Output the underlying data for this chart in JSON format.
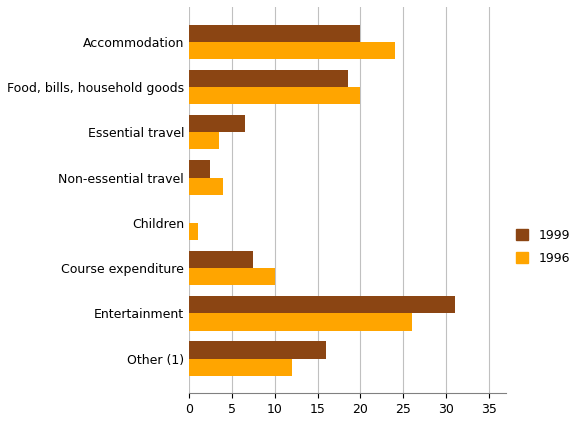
{
  "categories": [
    "Accommodation",
    "Food, bills, household goods",
    "Essential travel",
    "Non-essential travel",
    "Children",
    "Course expenditure",
    "Entertainment",
    "Other (1)"
  ],
  "values_1999": [
    20,
    18.5,
    6.5,
    2.5,
    0,
    7.5,
    31,
    16
  ],
  "values_1996": [
    24,
    20,
    3.5,
    4,
    1,
    10,
    26,
    12
  ],
  "color_1999": "#8B4513",
  "color_1996": "#FFA500",
  "legend_labels": [
    "1999",
    "1996"
  ],
  "xlim": [
    0,
    37
  ],
  "xticks": [
    0,
    5,
    10,
    15,
    20,
    25,
    30,
    35
  ],
  "bar_height": 0.38,
  "figsize": [
    5.78,
    4.23
  ],
  "dpi": 100
}
